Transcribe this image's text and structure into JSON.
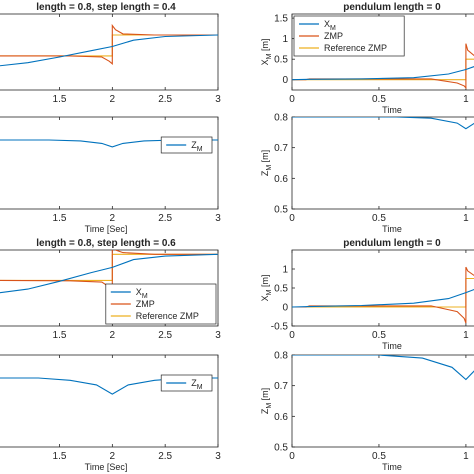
{
  "colors": {
    "xm": "#0072bd",
    "zmp": "#d95319",
    "ref": "#edb120",
    "zm": "#0072bd",
    "axis": "#262626",
    "tick": "#262626"
  },
  "chart_data": [
    {
      "id": "p1",
      "type": "line",
      "title": "length = 0.8, step length = 0.4",
      "xlabel": "",
      "ylabel": "",
      "xlim": [
        0.88,
        3
      ],
      "ylim": [
        -0.25,
        1.2
      ],
      "xticks": [
        1.5,
        2,
        2.5,
        3
      ],
      "xticklabels": [
        "1.5",
        "2",
        "2.5",
        "3"
      ],
      "yticks": [],
      "yticklabels": [],
      "legend": null,
      "series": [
        {
          "key": "ref",
          "x": [
            0.88,
            2.0,
            2.0,
            3.0
          ],
          "y": [
            0.4,
            0.4,
            0.8,
            0.8
          ]
        },
        {
          "key": "zmp",
          "x": [
            0.88,
            1.6,
            1.9,
            1.97,
            2.0,
            2.0,
            2.03,
            2.1,
            2.4,
            3.0
          ],
          "y": [
            0.4,
            0.4,
            0.38,
            0.3,
            0.25,
            0.98,
            0.9,
            0.82,
            0.8,
            0.8
          ]
        },
        {
          "key": "xm",
          "x": [
            0.88,
            1.2,
            1.5,
            1.8,
            2.0,
            2.2,
            2.5,
            3.0
          ],
          "y": [
            0.2,
            0.27,
            0.38,
            0.5,
            0.58,
            0.7,
            0.77,
            0.8
          ]
        }
      ]
    },
    {
      "id": "p2",
      "type": "line",
      "title": "pendulum length = 0",
      "xlabel": "Time",
      "ylabel": "X_M [m]",
      "xlim": [
        0,
        1.15
      ],
      "ylim": [
        -0.25,
        1.6
      ],
      "xticks": [
        0,
        0.5,
        1
      ],
      "xticklabels": [
        "0",
        "0.5",
        "1"
      ],
      "yticks": [
        0,
        0.5,
        1,
        1.5
      ],
      "yticklabels": [
        "0",
        "0.5",
        "1",
        "1.5"
      ],
      "legend": {
        "position": "top-left",
        "items": [
          {
            "key": "xm",
            "label": "X",
            "sub": "M"
          },
          {
            "key": "zmp",
            "label": "ZMP",
            "sub": ""
          },
          {
            "key": "ref",
            "label": "Reference ZMP",
            "sub": ""
          }
        ]
      },
      "series": [
        {
          "key": "ref",
          "x": [
            0,
            1.0,
            1.0,
            1.15
          ],
          "y": [
            0,
            0,
            0.5,
            0.5
          ]
        },
        {
          "key": "zmp",
          "x": [
            0,
            0.08,
            0.1,
            0.8,
            0.95,
            0.99,
            1.0,
            1.0,
            1.01,
            1.05,
            1.15
          ],
          "y": [
            0,
            0,
            0.02,
            0.02,
            -0.08,
            -0.15,
            -0.2,
            0.88,
            0.72,
            0.58,
            0.5
          ]
        },
        {
          "key": "xm",
          "x": [
            0,
            0.1,
            0.4,
            0.7,
            0.9,
            1.0,
            1.1,
            1.15
          ],
          "y": [
            0,
            0.01,
            0.02,
            0.05,
            0.14,
            0.25,
            0.4,
            0.45
          ]
        }
      ]
    },
    {
      "id": "p3",
      "type": "line",
      "title": "",
      "xlabel": "Time [Sec]",
      "ylabel": "",
      "xlim": [
        0.88,
        3
      ],
      "ylim": [
        0.5,
        0.9
      ],
      "xticks": [
        1.5,
        2,
        2.5,
        3
      ],
      "xticklabels": [
        "1.5",
        "2",
        "2.5",
        "3"
      ],
      "yticks": [],
      "yticklabels": [],
      "legend": {
        "position": "right",
        "items": [
          {
            "key": "zm",
            "label": "Z",
            "sub": "M"
          }
        ]
      },
      "series": [
        {
          "key": "zm",
          "x": [
            0.88,
            1.4,
            1.7,
            1.9,
            2.0,
            2.1,
            2.3,
            2.6,
            3.0
          ],
          "y": [
            0.8,
            0.8,
            0.796,
            0.785,
            0.77,
            0.785,
            0.796,
            0.8,
            0.8
          ]
        }
      ]
    },
    {
      "id": "p4",
      "type": "line",
      "title": "",
      "xlabel": "Time",
      "ylabel": "Z_M [m]",
      "xlim": [
        0,
        1.15
      ],
      "ylim": [
        0.5,
        0.8
      ],
      "xticks": [
        0,
        0.5,
        1
      ],
      "xticklabels": [
        "0",
        "0.5",
        "1"
      ],
      "yticks": [
        0.5,
        0.6,
        0.7,
        0.8
      ],
      "yticklabels": [
        "0.5",
        "0.6",
        "0.7",
        "0.8"
      ],
      "legend": null,
      "series": [
        {
          "key": "zm",
          "x": [
            0,
            0.6,
            0.8,
            0.95,
            1.0,
            1.05,
            1.15
          ],
          "y": [
            0.8,
            0.8,
            0.796,
            0.78,
            0.762,
            0.78,
            0.793
          ]
        }
      ]
    },
    {
      "id": "p5",
      "type": "line",
      "title": "length = 0.8, step length = 0.6",
      "xlabel": "",
      "ylabel": "",
      "xlim": [
        0.88,
        3
      ],
      "ylim": [
        -0.45,
        1.3
      ],
      "xticks": [
        1.5,
        2,
        2.5,
        3
      ],
      "xticklabels": [
        "1.5",
        "2",
        "2.5",
        "3"
      ],
      "yticks": [],
      "yticklabels": [],
      "legend": {
        "position": "bottom-right",
        "items": [
          {
            "key": "xm",
            "label": "X",
            "sub": "M"
          },
          {
            "key": "zmp",
            "label": "ZMP",
            "sub": ""
          },
          {
            "key": "ref",
            "label": "Reference ZMP",
            "sub": ""
          }
        ]
      },
      "series": [
        {
          "key": "ref",
          "x": [
            0.88,
            2.0,
            2.0,
            3.0
          ],
          "y": [
            0.6,
            0.6,
            1.2,
            1.2
          ]
        },
        {
          "key": "zmp",
          "x": [
            0.88,
            1.6,
            1.9,
            1.97,
            2.0,
            2.0,
            2.03,
            2.1,
            2.4,
            3.0
          ],
          "y": [
            0.6,
            0.59,
            0.56,
            0.45,
            0.32,
            1.38,
            1.3,
            1.24,
            1.2,
            1.2
          ]
        },
        {
          "key": "xm",
          "x": [
            0.88,
            1.2,
            1.5,
            1.8,
            2.0,
            2.2,
            2.5,
            3.0
          ],
          "y": [
            0.3,
            0.4,
            0.58,
            0.78,
            0.9,
            1.08,
            1.16,
            1.2
          ]
        }
      ]
    },
    {
      "id": "p6",
      "type": "line",
      "title": "pendulum length = 0",
      "xlabel": "Time",
      "ylabel": "X_M [m]",
      "xlim": [
        0,
        1.15
      ],
      "ylim": [
        -0.5,
        1.5
      ],
      "xticks": [
        0,
        0.5,
        1
      ],
      "xticklabels": [
        "0",
        "0.5",
        "1"
      ],
      "yticks": [
        -0.5,
        0,
        0.5,
        1
      ],
      "yticklabels": [
        "-0.5",
        "0",
        "0.5",
        "1"
      ],
      "legend": null,
      "series": [
        {
          "key": "ref",
          "x": [
            0,
            1.0,
            1.0,
            1.15
          ],
          "y": [
            0,
            0,
            0.75,
            0.75
          ]
        },
        {
          "key": "zmp",
          "x": [
            0,
            0.08,
            0.1,
            0.8,
            0.95,
            0.99,
            1.0,
            1.0,
            1.01,
            1.05,
            1.15
          ],
          "y": [
            0,
            0,
            0.03,
            0.03,
            -0.12,
            -0.3,
            -0.42,
            1.05,
            0.95,
            0.82,
            0.76
          ]
        },
        {
          "key": "xm",
          "x": [
            0,
            0.1,
            0.4,
            0.7,
            0.9,
            1.0,
            1.1,
            1.15
          ],
          "y": [
            0,
            0.01,
            0.04,
            0.1,
            0.22,
            0.38,
            0.55,
            0.62
          ]
        }
      ]
    },
    {
      "id": "p7",
      "type": "line",
      "title": "",
      "xlabel": "Time [Sec]",
      "ylabel": "",
      "xlim": [
        0.88,
        3
      ],
      "ylim": [
        0.5,
        0.9
      ],
      "xticks": [
        1.5,
        2,
        2.5,
        3
      ],
      "xticklabels": [
        "1.5",
        "2",
        "2.5",
        "3"
      ],
      "yticks": [],
      "yticklabels": [],
      "legend": {
        "position": "right",
        "items": [
          {
            "key": "zm",
            "label": "Z",
            "sub": "M"
          }
        ]
      },
      "series": [
        {
          "key": "zm",
          "x": [
            0.88,
            1.3,
            1.6,
            1.85,
            2.0,
            2.15,
            2.4,
            2.7,
            3.0
          ],
          "y": [
            0.8,
            0.8,
            0.79,
            0.77,
            0.73,
            0.77,
            0.79,
            0.8,
            0.8
          ]
        }
      ]
    },
    {
      "id": "p8",
      "type": "line",
      "title": "",
      "xlabel": "Time",
      "ylabel": "Z_M [m]",
      "xlim": [
        0,
        1.15
      ],
      "ylim": [
        0.5,
        0.8
      ],
      "xticks": [
        0,
        0.5,
        1
      ],
      "xticklabels": [
        "0",
        "0.5",
        "1"
      ],
      "yticks": [
        0.5,
        0.6,
        0.7,
        0.8
      ],
      "yticklabels": [
        "0.5",
        "0.6",
        "0.7",
        "0.8"
      ],
      "legend": null,
      "series": [
        {
          "key": "zm",
          "x": [
            0,
            0.5,
            0.75,
            0.92,
            1.0,
            1.06,
            1.15
          ],
          "y": [
            0.8,
            0.8,
            0.79,
            0.76,
            0.72,
            0.755,
            0.785
          ]
        }
      ]
    }
  ]
}
